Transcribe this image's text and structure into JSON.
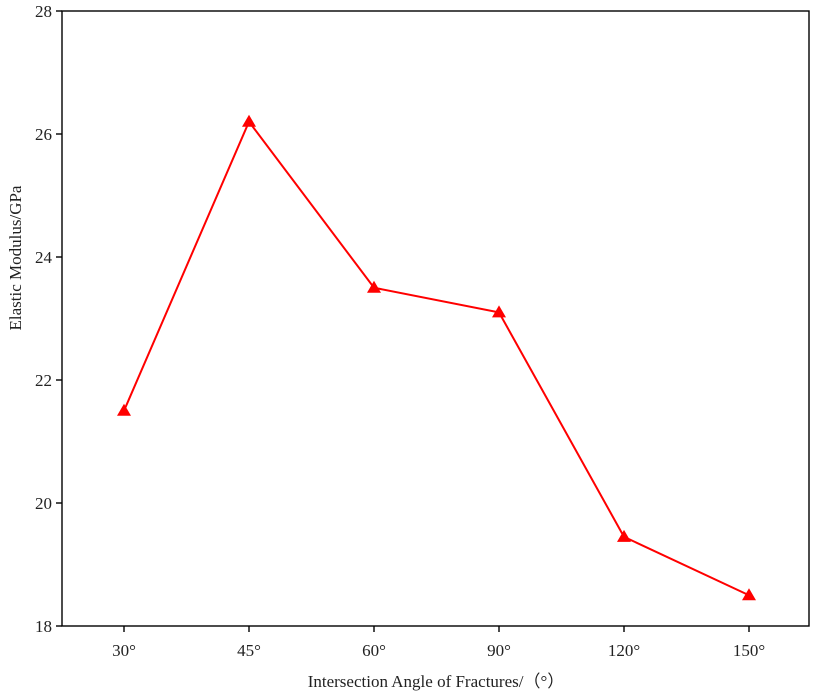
{
  "chart_data": {
    "type": "line",
    "title": "",
    "xlabel": "Intersection Angle of Fractures/（°）",
    "ylabel": "Elastic Modulus/GPa",
    "categories": [
      "30°",
      "45°",
      "60°",
      "90°",
      "120°",
      "150°"
    ],
    "series": [
      {
        "values": [
          21.5,
          26.2,
          23.5,
          23.1,
          19.45,
          18.5
        ],
        "color": "#ff0000",
        "marker": "triangle"
      }
    ],
    "ylim": [
      18,
      28
    ],
    "yticks": [
      "18",
      "20",
      "22",
      "24",
      "26",
      "28"
    ],
    "grid": false,
    "legend": "none"
  }
}
